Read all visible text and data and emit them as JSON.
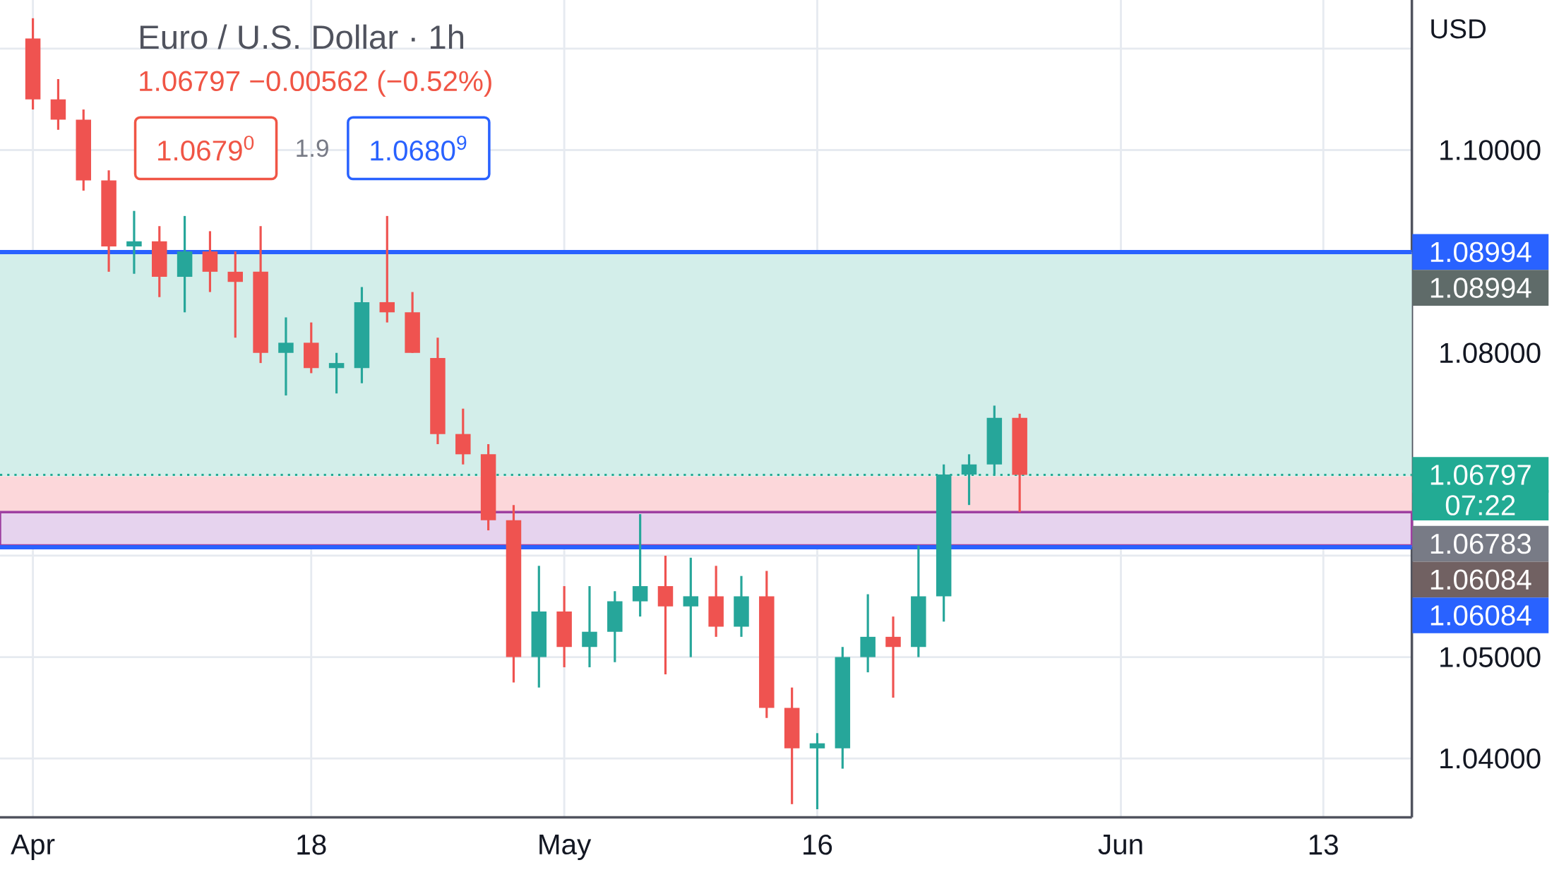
{
  "chart_data": {
    "type": "candlestick",
    "title": "Euro / U.S. Dollar · 1h",
    "categories": [
      "Apr",
      null,
      null,
      null,
      null,
      null,
      null,
      null,
      null,
      null,
      null,
      "18",
      null,
      null,
      null,
      null,
      null,
      null,
      null,
      null,
      null,
      "May",
      null,
      null,
      null,
      null,
      null,
      null,
      null,
      null,
      null,
      "16",
      null,
      null,
      null,
      null,
      null,
      null,
      null,
      null,
      null,
      null,
      null,
      "Jun",
      null,
      null,
      null,
      null,
      null,
      null,
      null,
      "13",
      null,
      null,
      null
    ],
    "ohlc": [
      [
        1.111,
        1.113,
        1.104,
        1.105
      ],
      [
        1.105,
        1.107,
        1.102,
        1.103
      ],
      [
        1.103,
        1.104,
        1.096,
        1.097
      ],
      [
        1.097,
        1.098,
        1.088,
        1.0905
      ],
      [
        1.0905,
        1.094,
        1.0878,
        1.091
      ],
      [
        1.091,
        1.0925,
        1.0855,
        1.0875
      ],
      [
        1.0875,
        1.0935,
        1.084,
        1.09
      ],
      [
        1.09,
        1.092,
        1.086,
        1.088
      ],
      [
        1.088,
        1.09,
        1.0815,
        1.087
      ],
      [
        1.088,
        1.0925,
        1.079,
        1.08
      ],
      [
        1.08,
        1.0835,
        1.0758,
        1.081
      ],
      [
        1.081,
        1.083,
        1.078,
        1.0785
      ],
      [
        1.0785,
        1.08,
        1.076,
        1.079
      ],
      [
        1.0785,
        1.0865,
        1.077,
        1.085
      ],
      [
        1.085,
        1.0935,
        1.083,
        1.084
      ],
      [
        1.084,
        1.086,
        1.08,
        1.08
      ],
      [
        1.0795,
        1.0815,
        1.071,
        1.072
      ],
      [
        1.072,
        1.0745,
        1.069,
        1.07
      ],
      [
        1.07,
        1.071,
        1.0625,
        1.0635
      ],
      [
        1.0635,
        1.065,
        1.0475,
        1.05
      ],
      [
        1.05,
        1.059,
        1.047,
        1.0545
      ],
      [
        1.0545,
        1.057,
        1.049,
        1.051
      ],
      [
        1.051,
        1.057,
        1.049,
        1.0525
      ],
      [
        1.0525,
        1.0565,
        1.0495,
        1.0555
      ],
      [
        1.0555,
        1.0641,
        1.054,
        1.057
      ],
      [
        1.057,
        1.06,
        1.0483,
        1.055
      ],
      [
        1.055,
        1.0598,
        1.05,
        1.056
      ],
      [
        1.056,
        1.059,
        1.052,
        1.053
      ],
      [
        1.053,
        1.058,
        1.052,
        1.056
      ],
      [
        1.056,
        1.0585,
        1.044,
        1.045
      ],
      [
        1.045,
        1.047,
        1.0355,
        1.041
      ],
      [
        1.041,
        1.0425,
        1.035,
        1.0415
      ],
      [
        1.041,
        1.051,
        1.039,
        1.05
      ],
      [
        1.05,
        1.0562,
        1.0485,
        1.052
      ],
      [
        1.052,
        1.054,
        1.046,
        1.051
      ],
      [
        1.051,
        1.061,
        1.05,
        1.056
      ],
      [
        1.056,
        1.069,
        1.0535,
        1.068
      ],
      [
        1.068,
        1.07,
        1.065,
        1.069
      ],
      [
        1.069,
        1.0748,
        1.068,
        1.0736
      ],
      [
        1.0736,
        1.074,
        1.0643,
        1.06797
      ],
      null,
      null,
      null,
      null,
      null,
      null,
      null,
      null,
      null,
      null,
      null,
      null,
      null,
      null,
      null
    ],
    "ylim": [
      1.0342,
      1.1148
    ],
    "yticks": [
      {
        "value": 1.04,
        "label": "1.04000"
      },
      {
        "value": 1.05,
        "label": "1.05000"
      },
      {
        "value": 1.06,
        "label": null
      },
      {
        "value": 1.07,
        "label": null
      },
      {
        "value": 1.08,
        "label": "1.08000"
      },
      {
        "value": 1.09,
        "label": null
      },
      {
        "value": 1.1,
        "label": "1.10000"
      },
      {
        "value": 1.11,
        "label": null
      }
    ],
    "grid": true,
    "bands": [
      {
        "axis": "y",
        "from": 1.06783,
        "to": 1.08994,
        "label": "1.08994",
        "color": "#d3eeea"
      },
      {
        "axis": "y",
        "from": 1.06084,
        "to": 1.06783,
        "label": "1.06084",
        "color": "#fcd7da"
      },
      {
        "axis": "y",
        "from": 1.061,
        "to": 1.0643,
        "color": "#e6d3ee"
      }
    ],
    "ref_lines": [
      {
        "axis": "y",
        "value": 1.08994,
        "label": "1.08994",
        "color": "#2962ff"
      },
      {
        "axis": "y",
        "value": 1.06084,
        "label": "1.06084",
        "color": "#2962ff"
      },
      {
        "axis": "y",
        "value": 1.06797,
        "label": "1.06797",
        "color": "#22ab94",
        "line_style": "dotted"
      }
    ],
    "annotations": [
      "1.06797  −0.00562 (−0.52%)",
      "1.0679$^{0}$",
      "1.9",
      "1.0680$^{9}$",
      "07:22",
      "USD",
      "1.06783"
    ]
  }
}
